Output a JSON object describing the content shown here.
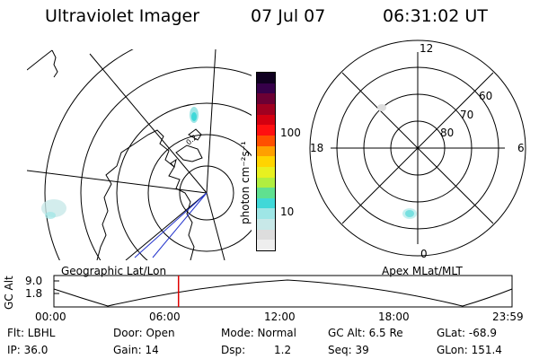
{
  "header": {
    "instrument": "Ultraviolet Imager",
    "date": "07 Jul 07",
    "time": "06:31:02 UT"
  },
  "colorbar": {
    "unit_label": "photon cm⁻²s⁻¹",
    "tick_100": "100",
    "tick_10": "10",
    "colors": [
      "#eeeeee",
      "#dddddd",
      "#c8e8e8",
      "#9ee6e6",
      "#40d8d8",
      "#60e090",
      "#b0ee40",
      "#e8f020",
      "#ffd400",
      "#ffa000",
      "#ff5000",
      "#ff1010",
      "#d40010",
      "#a00020",
      "#6c0034",
      "#36004a",
      "#100020"
    ]
  },
  "geo_map": {
    "label": "Geographic Lat/Lon"
  },
  "polar_plot": {
    "label": "Apex MLat/MLT",
    "mlt_labels": [
      "12",
      "18",
      "6",
      "0"
    ],
    "lat_labels": [
      "60",
      "70",
      "80"
    ]
  },
  "altitude_strip": {
    "axis_label": "GC Alt",
    "y_ticks": [
      "9.0",
      "1.8"
    ],
    "time_ticks": [
      "00:00",
      "06:00",
      "12:00",
      "18:00",
      "23:59"
    ],
    "current_time_fraction": 0.272
  },
  "status": {
    "row1": [
      {
        "key": "flt",
        "text": "Flt: LBHL"
      },
      {
        "key": "door",
        "text": "Door: Open"
      },
      {
        "key": "mode",
        "text": "Mode: Normal"
      },
      {
        "key": "gcalt",
        "text": "GC Alt: 6.5 Re"
      },
      {
        "key": "glat",
        "text": "GLat: -68.9"
      }
    ],
    "row2": [
      {
        "key": "ip",
        "text": "IP: 36.0"
      },
      {
        "key": "gain",
        "text": "Gain: 14"
      },
      {
        "key": "dsp_label",
        "text": "Dsp:"
      },
      {
        "key": "dsp_value",
        "text": "1.2"
      },
      {
        "key": "seq",
        "text": "Seq: 39"
      },
      {
        "key": "glon",
        "text": "GLon: 151.4"
      }
    ]
  }
}
